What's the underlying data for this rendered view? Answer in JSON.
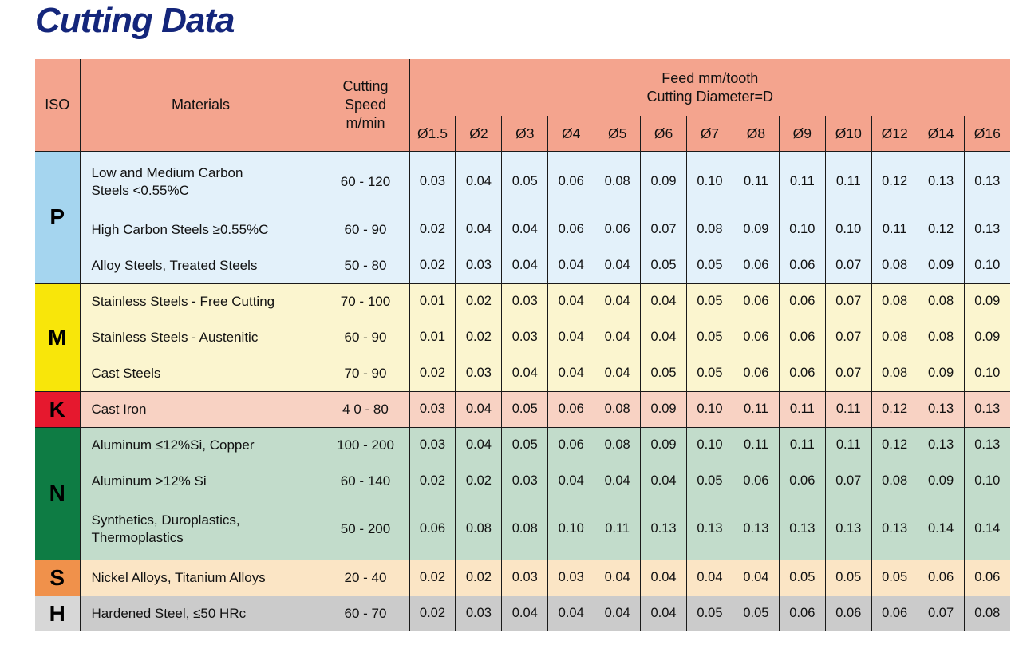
{
  "title": "Cutting Data",
  "colors": {
    "title_text": "#14267B",
    "header_bg": "#F4A48E",
    "grid_line": "#1A1A1A"
  },
  "table": {
    "headers": {
      "iso": "ISO",
      "materials": "Materials",
      "cutting_speed": "Cutting\nSpeed\nm/min",
      "feed": "Feed mm/tooth\nCutting Diameter=D",
      "diameters": [
        "Ø1.5",
        "Ø2",
        "Ø3",
        "Ø4",
        "Ø5",
        "Ø6",
        "Ø7",
        "Ø8",
        "Ø9",
        "Ø10",
        "Ø12",
        "Ø14",
        "Ø16"
      ]
    },
    "groups": [
      {
        "iso": "P",
        "iso_bg": "#A5D5EF",
        "row_bg": "#E3F1FA",
        "rows": [
          {
            "material": "Low and Medium Carbon\nSteels <0.55%C",
            "speed": "60 - 120",
            "feeds": [
              "0.03",
              "0.04",
              "0.05",
              "0.06",
              "0.08",
              "0.09",
              "0.10",
              "0.11",
              "0.11",
              "0.11",
              "0.12",
              "0.13",
              "0.13"
            ]
          },
          {
            "material": "High Carbon Steels ≥0.55%C",
            "speed": "60 - 90",
            "feeds": [
              "0.02",
              "0.04",
              "0.04",
              "0.06",
              "0.06",
              "0.07",
              "0.08",
              "0.09",
              "0.10",
              "0.10",
              "0.11",
              "0.12",
              "0.13"
            ]
          },
          {
            "material": "Alloy Steels, Treated Steels",
            "speed": "50 - 80",
            "feeds": [
              "0.02",
              "0.03",
              "0.04",
              "0.04",
              "0.04",
              "0.05",
              "0.05",
              "0.06",
              "0.06",
              "0.07",
              "0.08",
              "0.09",
              "0.10"
            ]
          }
        ]
      },
      {
        "iso": "M",
        "iso_bg": "#F8E60A",
        "row_bg": "#FBF5CF",
        "rows": [
          {
            "material": "Stainless Steels - Free Cutting",
            "speed": "70 - 100",
            "feeds": [
              "0.01",
              "0.02",
              "0.03",
              "0.04",
              "0.04",
              "0.04",
              "0.05",
              "0.06",
              "0.06",
              "0.07",
              "0.08",
              "0.08",
              "0.09"
            ]
          },
          {
            "material": "Stainless Steels - Austenitic",
            "speed": "60 - 90",
            "feeds": [
              "0.01",
              "0.02",
              "0.03",
              "0.04",
              "0.04",
              "0.04",
              "0.05",
              "0.06",
              "0.06",
              "0.07",
              "0.08",
              "0.08",
              "0.09"
            ]
          },
          {
            "material": "Cast Steels",
            "speed": "70 - 90",
            "feeds": [
              "0.02",
              "0.03",
              "0.04",
              "0.04",
              "0.04",
              "0.05",
              "0.05",
              "0.06",
              "0.06",
              "0.07",
              "0.08",
              "0.09",
              "0.10"
            ]
          }
        ]
      },
      {
        "iso": "K",
        "iso_bg": "#E6182E",
        "row_bg": "#F8D2C3",
        "rows": [
          {
            "material": "Cast Iron",
            "speed": "4 0 - 80",
            "feeds": [
              "0.03",
              "0.04",
              "0.05",
              "0.06",
              "0.08",
              "0.09",
              "0.10",
              "0.11",
              "0.11",
              "0.11",
              "0.12",
              "0.13",
              "0.13"
            ]
          }
        ]
      },
      {
        "iso": "N",
        "iso_bg": "#0E7C44",
        "row_bg": "#C2DCCB",
        "rows": [
          {
            "material": "Aluminum ≤12%Si, Copper",
            "speed": "100 - 200",
            "feeds": [
              "0.03",
              "0.04",
              "0.05",
              "0.06",
              "0.08",
              "0.09",
              "0.10",
              "0.11",
              "0.11",
              "0.11",
              "0.12",
              "0.13",
              "0.13"
            ]
          },
          {
            "material": "Aluminum >12% Si",
            "speed": "60 - 140",
            "feeds": [
              "0.02",
              "0.02",
              "0.03",
              "0.04",
              "0.04",
              "0.04",
              "0.05",
              "0.06",
              "0.06",
              "0.07",
              "0.08",
              "0.09",
              "0.10"
            ]
          },
          {
            "material": "Synthetics, Duroplastics,\nThermoplastics",
            "speed": "50 - 200",
            "feeds": [
              "0.06",
              "0.08",
              "0.08",
              "0.10",
              "0.11",
              "0.13",
              "0.13",
              "0.13",
              "0.13",
              "0.13",
              "0.13",
              "0.14",
              "0.14"
            ]
          }
        ]
      },
      {
        "iso": "S",
        "iso_bg": "#F0914B",
        "row_bg": "#FBE5C5",
        "rows": [
          {
            "material": "Nickel Alloys, Titanium Alloys",
            "speed": "20 - 40",
            "feeds": [
              "0.02",
              "0.02",
              "0.03",
              "0.03",
              "0.04",
              "0.04",
              "0.04",
              "0.04",
              "0.05",
              "0.05",
              "0.05",
              "0.06",
              "0.06"
            ]
          }
        ]
      },
      {
        "iso": "H",
        "iso_bg": "#D7D7D7",
        "row_bg": "#CBCBCB",
        "rows": [
          {
            "material": "Hardened Steel, ≤50 HRc",
            "speed": "60 - 70",
            "feeds": [
              "0.02",
              "0.03",
              "0.04",
              "0.04",
              "0.04",
              "0.04",
              "0.05",
              "0.05",
              "0.06",
              "0.06",
              "0.06",
              "0.07",
              "0.08"
            ]
          }
        ]
      }
    ]
  }
}
